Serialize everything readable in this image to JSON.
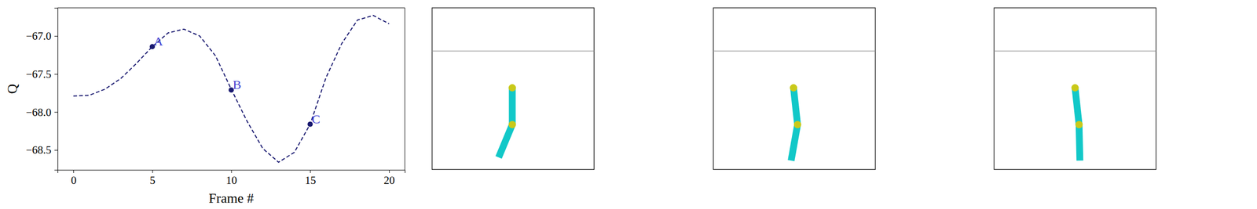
{
  "chart_data": {
    "type": "line",
    "xlabel": "Frame #",
    "ylabel": "Q",
    "x": [
      0,
      1,
      2,
      3,
      4,
      5,
      6,
      7,
      8,
      9,
      10,
      11,
      12,
      13,
      14,
      15,
      16,
      17,
      18,
      19,
      20
    ],
    "values": [
      -67.79,
      -67.78,
      -67.7,
      -67.56,
      -67.36,
      -67.14,
      -66.96,
      -66.91,
      -67.0,
      -67.26,
      -67.7,
      -68.12,
      -68.48,
      -68.66,
      -68.53,
      -68.16,
      -67.55,
      -67.1,
      -66.79,
      -66.73,
      -66.84
    ],
    "color": "#191970",
    "line_style": "dashed",
    "xlim": [
      -1.0,
      21.0
    ],
    "ylim": [
      -68.76,
      -66.63
    ],
    "xticks": [
      0,
      5,
      10,
      15,
      20
    ],
    "yticks": [
      {
        "value": -68.5,
        "label": "−68.5"
      },
      {
        "value": -68.0,
        "label": "−68.0"
      },
      {
        "value": -67.5,
        "label": "−67.5"
      },
      {
        "value": -67.0,
        "label": "−67.0"
      }
    ],
    "annotations": [
      {
        "text": "A",
        "x": 5,
        "y": -67.14
      },
      {
        "text": "B",
        "x": 10,
        "y": -67.71
      },
      {
        "text": "C",
        "x": 15,
        "y": -68.16
      }
    ]
  }
}
